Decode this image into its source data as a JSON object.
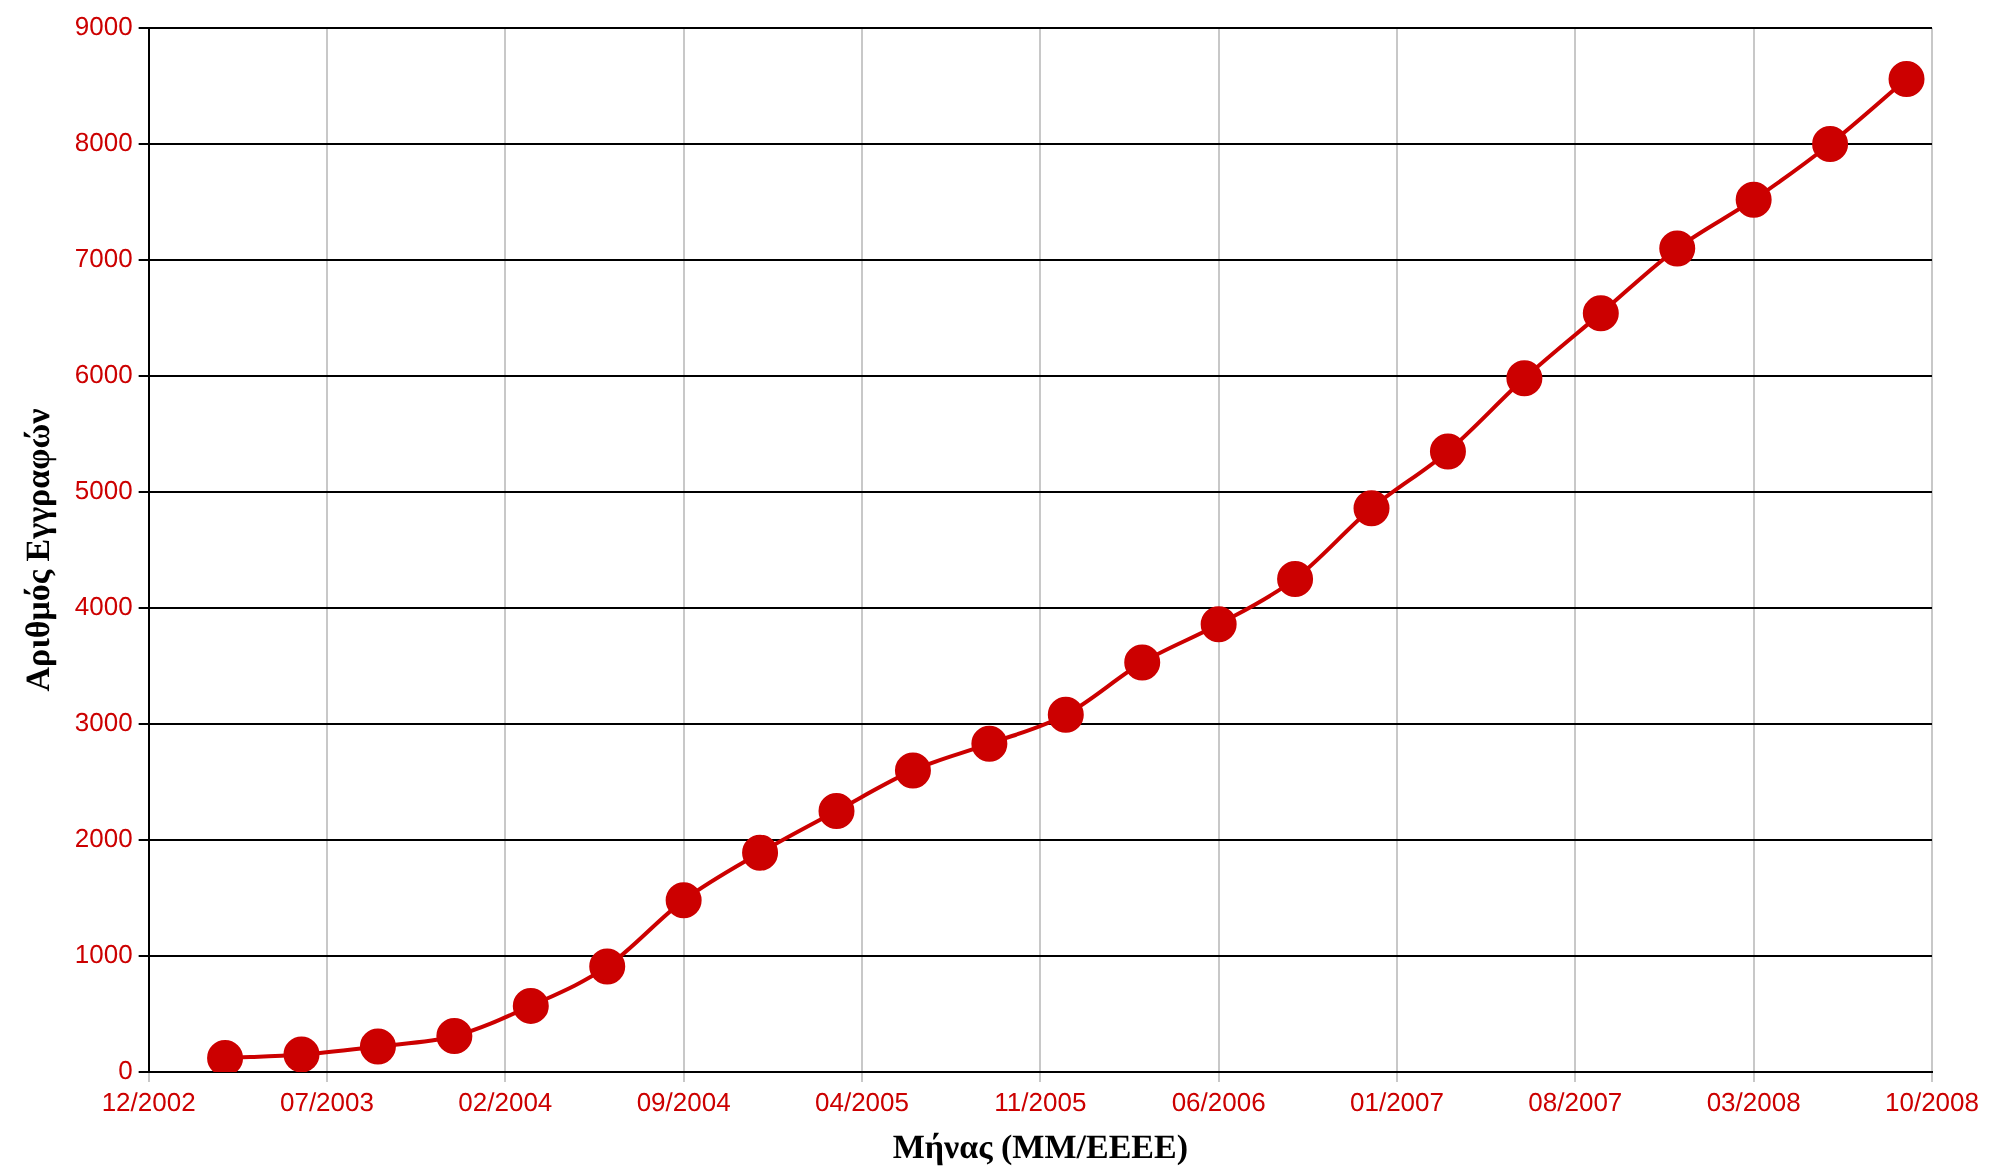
{
  "chart_data": {
    "type": "line",
    "xlabel": "Μήνας (ΜΜ/ΕΕΕΕ)",
    "ylabel": "Αριθμός Εγγραφών",
    "x": [
      "2003-03",
      "2003-06",
      "2003-09",
      "2003-12",
      "2004-03",
      "2004-06",
      "2004-09",
      "2004-12",
      "2005-03",
      "2005-06",
      "2005-09",
      "2005-12",
      "2006-03",
      "2006-06",
      "2006-09",
      "2006-12",
      "2007-03",
      "2007-06",
      "2007-09",
      "2007-12",
      "2008-03",
      "2008-06",
      "2008-09"
    ],
    "series": [
      {
        "color": "#cc0000",
        "values": [
          120,
          150,
          220,
          310,
          570,
          910,
          1480,
          1890,
          2250,
          2600,
          2830,
          3080,
          3530,
          3860,
          4250,
          4860,
          5350,
          5980,
          6540,
          7100,
          7520,
          8000,
          8560
        ]
      }
    ],
    "xlim": [
      "2002-12",
      "2008-10"
    ],
    "xticks": [
      {
        "value": "2002-12",
        "label": "12/2002"
      },
      {
        "value": "2003-07",
        "label": "07/2003"
      },
      {
        "value": "2004-02",
        "label": "02/2004"
      },
      {
        "value": "2004-09",
        "label": "09/2004"
      },
      {
        "value": "2005-04",
        "label": "04/2005"
      },
      {
        "value": "2005-11",
        "label": "11/2005"
      },
      {
        "value": "2006-06",
        "label": "06/2006"
      },
      {
        "value": "2007-01",
        "label": "01/2007"
      },
      {
        "value": "2007-08",
        "label": "08/2007"
      },
      {
        "value": "2008-03",
        "label": "03/2008"
      },
      {
        "value": "2008-10",
        "label": "10/2008"
      }
    ],
    "ylim": [
      0,
      9000
    ],
    "yticks": [
      0,
      1000,
      2000,
      3000,
      4000,
      5000,
      6000,
      7000,
      8000,
      9000
    ],
    "grid": true,
    "legend": false,
    "marker": "circle",
    "line_style": "solid"
  }
}
